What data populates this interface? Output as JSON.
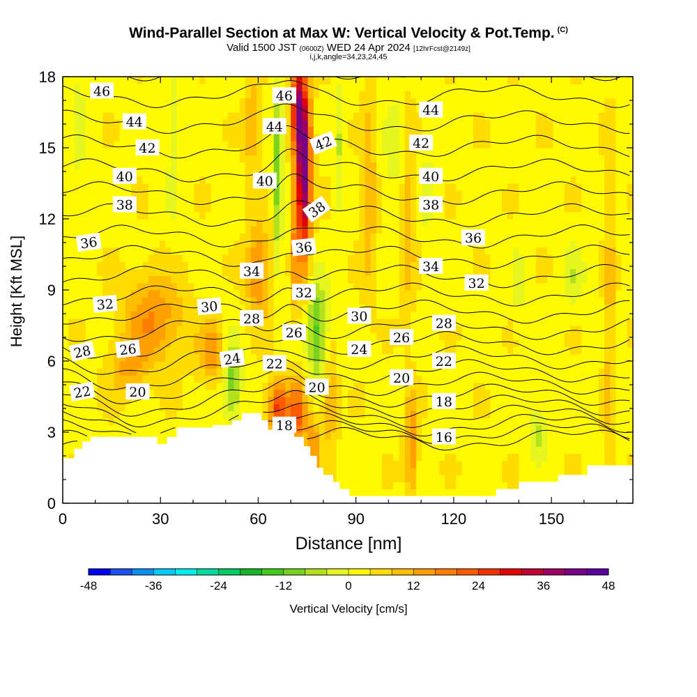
{
  "chart_data": {
    "type": "heatmap",
    "title": "Wind-Parallel Section at Max W: Vertical Velocity & Pot.Temp.",
    "title_tag": "(C)",
    "subtitle": {
      "valid_prefix": "Valid 1500 JST",
      "utc": "(0600Z)",
      "date": "WED 24 Apr 2024",
      "forecast": "[12hrFcst@2149z]"
    },
    "subtitle2": "i,j,k,angle=34,23,24,45",
    "xlabel": "Distance [nm]",
    "ylabel": "Height [Kft MSL]",
    "xlim": [
      0,
      175
    ],
    "ylim": [
      0,
      18
    ],
    "x_ticks": [
      0,
      30,
      60,
      90,
      120,
      150
    ],
    "y_ticks": [
      0,
      3,
      6,
      9,
      12,
      15,
      18
    ],
    "colorbar": {
      "label": "Vertical Velocity [cm/s]",
      "min": -48,
      "max": 48,
      "step": 4,
      "tick_values": [
        -48,
        -36,
        -24,
        -12,
        0,
        12,
        24,
        36,
        48
      ],
      "colors": [
        "#0000ee",
        "#1c50f0",
        "#0a90f0",
        "#00c8f5",
        "#00ecec",
        "#00d8a0",
        "#00c864",
        "#18b428",
        "#46c81e",
        "#78d21e",
        "#b4e11e",
        "#e6f51e",
        "#fffa00",
        "#ffdc00",
        "#ffbe00",
        "#ffa000",
        "#ff7d00",
        "#ff5a00",
        "#f03200",
        "#e60000",
        "#be0032",
        "#9b0064",
        "#780087",
        "#5a00a0"
      ]
    },
    "theta_labels": [
      {
        "text": "46",
        "x": 12,
        "y": 17.4,
        "a": 0
      },
      {
        "text": "44",
        "x": 22,
        "y": 16.1,
        "a": 0
      },
      {
        "text": "42",
        "x": 26,
        "y": 15.0,
        "a": 0
      },
      {
        "text": "40",
        "x": 19,
        "y": 13.8,
        "a": 0
      },
      {
        "text": "38",
        "x": 19,
        "y": 12.6,
        "a": 0
      },
      {
        "text": "36",
        "x": 8,
        "y": 11.0,
        "a": -8
      },
      {
        "text": "34",
        "x": 58,
        "y": 9.8,
        "a": 0
      },
      {
        "text": "32",
        "x": 13,
        "y": 8.4,
        "a": -5
      },
      {
        "text": "30",
        "x": 45,
        "y": 8.3,
        "a": -5
      },
      {
        "text": "28",
        "x": 58,
        "y": 7.8,
        "a": 0
      },
      {
        "text": "26",
        "x": 20,
        "y": 6.5,
        "a": -6
      },
      {
        "text": "28",
        "x": 6,
        "y": 6.4,
        "a": -12
      },
      {
        "text": "24",
        "x": 52,
        "y": 6.1,
        "a": -8
      },
      {
        "text": "22",
        "x": 6,
        "y": 4.7,
        "a": -10
      },
      {
        "text": "20",
        "x": 23,
        "y": 4.7,
        "a": 0
      },
      {
        "text": "22",
        "x": 65,
        "y": 5.9,
        "a": 0
      },
      {
        "text": "26",
        "x": 71,
        "y": 7.2,
        "a": 0
      },
      {
        "text": "32",
        "x": 74,
        "y": 8.9,
        "a": 0
      },
      {
        "text": "36",
        "x": 74,
        "y": 10.8,
        "a": -6
      },
      {
        "text": "38",
        "x": 78,
        "y": 12.4,
        "a": -35
      },
      {
        "text": "40",
        "x": 62,
        "y": 13.6,
        "a": 0
      },
      {
        "text": "42",
        "x": 80,
        "y": 15.2,
        "a": -22
      },
      {
        "text": "44",
        "x": 65,
        "y": 15.9,
        "a": 0
      },
      {
        "text": "46",
        "x": 68,
        "y": 17.2,
        "a": 0
      },
      {
        "text": "20",
        "x": 78,
        "y": 4.9,
        "a": 0
      },
      {
        "text": "18",
        "x": 68,
        "y": 3.3,
        "a": 0
      },
      {
        "text": "30",
        "x": 91,
        "y": 7.9,
        "a": 0
      },
      {
        "text": "24",
        "x": 91,
        "y": 6.5,
        "a": 0
      },
      {
        "text": "26",
        "x": 104,
        "y": 7.0,
        "a": 0
      },
      {
        "text": "20",
        "x": 104,
        "y": 5.3,
        "a": 0
      },
      {
        "text": "28",
        "x": 117,
        "y": 7.6,
        "a": 0
      },
      {
        "text": "22",
        "x": 117,
        "y": 6.0,
        "a": 0
      },
      {
        "text": "18",
        "x": 117,
        "y": 4.3,
        "a": 0
      },
      {
        "text": "16",
        "x": 117,
        "y": 2.8,
        "a": 0
      },
      {
        "text": "34",
        "x": 113,
        "y": 10.0,
        "a": 0
      },
      {
        "text": "32",
        "x": 127,
        "y": 9.3,
        "a": 0
      },
      {
        "text": "36",
        "x": 126,
        "y": 11.2,
        "a": 0
      },
      {
        "text": "38",
        "x": 113,
        "y": 12.6,
        "a": 0
      },
      {
        "text": "40",
        "x": 113,
        "y": 13.8,
        "a": 0
      },
      {
        "text": "42",
        "x": 110,
        "y": 15.2,
        "a": 0
      },
      {
        "text": "44",
        "x": 113,
        "y": 16.6,
        "a": 0
      }
    ]
  }
}
